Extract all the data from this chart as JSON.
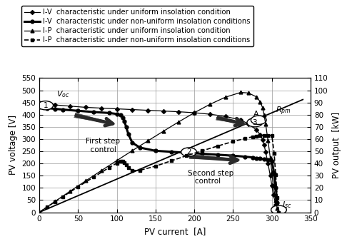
{
  "xlabel": "PV current  [A]",
  "ylabel": "PV voltage [V]",
  "ylabel_right": "PV output  [kW]",
  "xlim": [
    0,
    350
  ],
  "ylim_left": [
    0,
    550
  ],
  "ylim_right": [
    0,
    110
  ],
  "xticks": [
    0,
    50,
    100,
    150,
    200,
    250,
    300,
    350
  ],
  "yticks_left": [
    0,
    50,
    100,
    150,
    200,
    250,
    300,
    350,
    400,
    450,
    500,
    550
  ],
  "yticks_right": [
    0,
    10,
    20,
    30,
    40,
    50,
    60,
    70,
    80,
    90,
    100,
    110
  ],
  "legend_entries": [
    "I-V  characteristic under uniform insolation condition",
    "I-V  characteristic under non-uniform insolation conditions",
    "I-P  characteristic under uniform insolation condition",
    "I-P  characteristic under non-uniform insolation conditions"
  ],
  "iv_unif_I": [
    0,
    20,
    40,
    60,
    80,
    100,
    120,
    140,
    160,
    180,
    200,
    220,
    240,
    260,
    270,
    280,
    285,
    288,
    290,
    292,
    295,
    298,
    300,
    302,
    305,
    307,
    309
  ],
  "iv_unif_V": [
    450,
    440,
    435,
    430,
    427,
    424,
    421,
    418,
    415,
    412,
    408,
    402,
    393,
    378,
    362,
    338,
    318,
    298,
    275,
    248,
    200,
    150,
    110,
    72,
    32,
    10,
    0
  ],
  "iv_nonunif_I": [
    0,
    10,
    20,
    30,
    50,
    70,
    90,
    100,
    105,
    108,
    110,
    112,
    115,
    120,
    130,
    150,
    170,
    190,
    210,
    230,
    250,
    265,
    275,
    280,
    285,
    290,
    295,
    300,
    303,
    305,
    307,
    309
  ],
  "iv_nonunif_V": [
    430,
    427,
    424,
    421,
    416,
    411,
    407,
    403,
    398,
    388,
    372,
    350,
    320,
    285,
    265,
    252,
    248,
    244,
    240,
    236,
    232,
    228,
    225,
    222,
    220,
    217,
    214,
    210,
    160,
    100,
    40,
    0
  ],
  "rpm_I": [
    0,
    340
  ],
  "rpm_V": [
    0,
    462
  ],
  "background_color": "#ffffff",
  "grid_color": "#999999"
}
